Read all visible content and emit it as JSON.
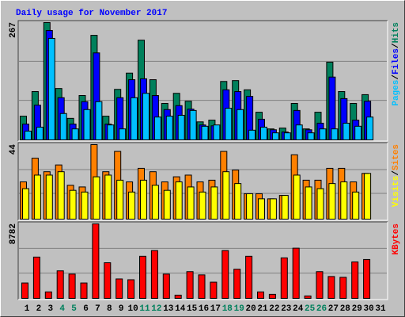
{
  "chart_data": [
    {
      "type": "bar",
      "title": "Daily usage for November 2017",
      "categories": [
        "1",
        "2",
        "3",
        "4",
        "5",
        "6",
        "7",
        "8",
        "9",
        "10",
        "11",
        "12",
        "13",
        "14",
        "15",
        "16",
        "17",
        "18",
        "19",
        "20",
        "21",
        "22",
        "23",
        "24",
        "25",
        "26",
        "27",
        "28",
        "29",
        "30",
        "31"
      ],
      "highlight_categories": [
        3,
        4,
        10,
        11,
        17,
        18,
        24,
        25
      ],
      "highlight_color": "#00805C",
      "category_color": "#000000",
      "legend_separator": "/",
      "ylim": [
        0,
        267
      ],
      "yticks": [
        267
      ],
      "gridlines": [
        89,
        178
      ],
      "series": [
        {
          "name": "Hits",
          "color": "#00805C",
          "values": [
            54,
            110,
            267,
            117,
            49,
            101,
            238,
            54,
            115,
            152,
            227,
            137,
            83,
            106,
            88,
            41,
            45,
            133,
            135,
            114,
            63,
            25,
            27,
            83,
            25,
            63,
            177,
            110,
            83,
            103,
            0
          ]
        },
        {
          "name": "Files",
          "color": "#0000FF",
          "values": [
            36,
            79,
            249,
            96,
            36,
            87,
            198,
            36,
            96,
            137,
            139,
            101,
            69,
            78,
            70,
            34,
            32,
            114,
            110,
            99,
            47,
            23,
            18,
            67,
            23,
            38,
            143,
            94,
            45,
            88,
            0
          ]
        },
        {
          "name": "Pages",
          "color": "#00C0FF",
          "values": [
            20,
            29,
            231,
            60,
            25,
            69,
            87,
            34,
            25,
            96,
            106,
            52,
            54,
            56,
            67,
            31,
            34,
            72,
            69,
            22,
            29,
            16,
            16,
            34,
            16,
            25,
            25,
            38,
            31,
            52,
            0
          ]
        }
      ]
    },
    {
      "type": "bar",
      "ylim": [
        0,
        44
      ],
      "yticks": [
        44
      ],
      "gridlines": [
        15,
        29
      ],
      "series": [
        {
          "name": "Sites",
          "color": "#FF8000",
          "values": [
            22,
            36,
            28,
            32,
            20,
            19,
            44,
            28,
            40,
            22,
            30,
            28,
            22,
            25,
            26,
            22,
            23,
            40,
            29,
            15,
            15,
            12,
            14,
            38,
            23,
            23,
            30,
            30,
            22,
            27,
            0
          ]
        },
        {
          "name": "Visits",
          "color": "#FFFF00",
          "values": [
            18,
            26,
            26,
            28,
            17,
            16,
            25,
            26,
            23,
            16,
            23,
            20,
            17,
            22,
            19,
            16,
            19,
            28,
            21,
            15,
            12,
            12,
            14,
            26,
            19,
            18,
            21,
            22,
            16,
            27,
            0
          ]
        }
      ]
    },
    {
      "type": "bar",
      "ylim": [
        0,
        8782
      ],
      "yticks": [
        8782
      ],
      "gridlines": [
        2927,
        5855
      ],
      "series": [
        {
          "name": "KBytes",
          "color": "#FF0000",
          "values": [
            1815,
            4870,
            764,
            3247,
            2865,
            1815,
            8782,
            4202,
            2292,
            2197,
            4966,
            5635,
            2865,
            382,
            3152,
            2770,
            1910,
            5635,
            3438,
            4966,
            764,
            478,
            4775,
            5921,
            287,
            3152,
            2579,
            2483,
            4298,
            4584,
            0
          ]
        }
      ]
    }
  ]
}
